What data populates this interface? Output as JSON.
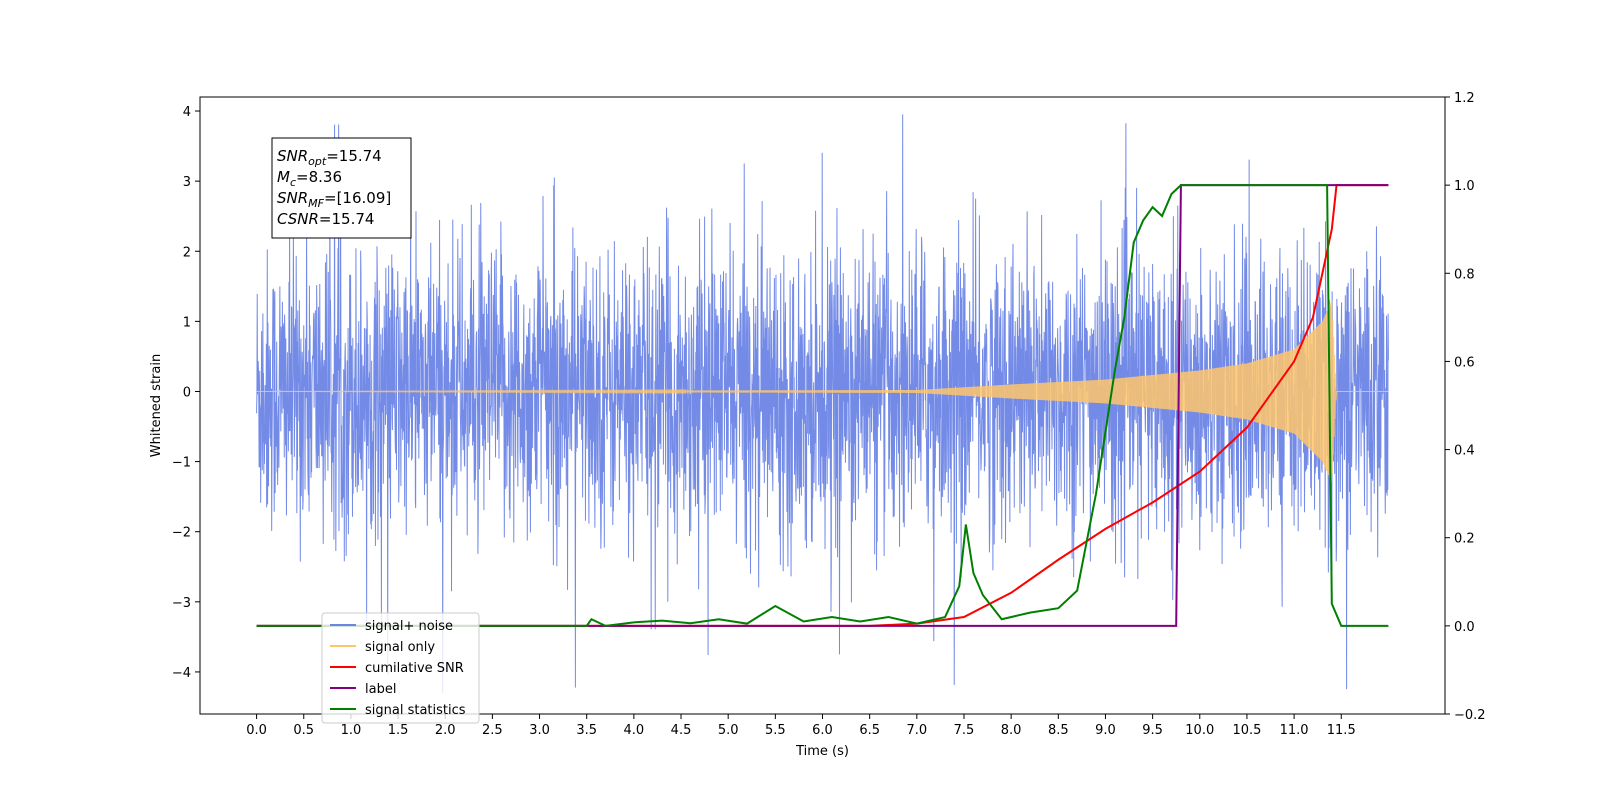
{
  "chart_data": {
    "type": "line",
    "title": "",
    "xlabel": "Time (s)",
    "ylabel": "Whitened strain",
    "y2label": "",
    "xlim": [
      -0.6,
      12.6
    ],
    "ylim": [
      -4.6,
      4.2
    ],
    "y2lim": [
      -0.2,
      1.2
    ],
    "xticks": [
      0.0,
      0.5,
      1.0,
      1.5,
      2.0,
      2.5,
      3.0,
      3.5,
      4.0,
      4.5,
      5.0,
      5.5,
      6.0,
      6.5,
      7.0,
      7.5,
      8.0,
      8.5,
      9.0,
      9.5,
      10.0,
      10.5,
      11.0,
      11.5
    ],
    "xtick_labels": [
      "0.0",
      "0.5",
      "1.0",
      "1.5",
      "2.0",
      "2.5",
      "3.0",
      "3.5",
      "4.0",
      "4.5",
      "5.0",
      "5.5",
      "6.0",
      "6.5",
      "7.0",
      "7.5",
      "8.0",
      "8.5",
      "9.0",
      "9.5",
      "10.0",
      "10.5",
      "11.0",
      "11.5"
    ],
    "yticks": [
      -4,
      -3,
      -2,
      -1,
      0,
      1,
      2,
      3,
      4
    ],
    "ytick_labels": [
      "−4",
      "−3",
      "−2",
      "−1",
      "0",
      "1",
      "2",
      "3",
      "4"
    ],
    "y2ticks": [
      -0.2,
      0.0,
      0.2,
      0.4,
      0.6,
      0.8,
      1.0,
      1.2
    ],
    "y2tick_labels": [
      "−0.2",
      "0.0",
      "0.2",
      "0.4",
      "0.6",
      "0.8",
      "1.0",
      "1.2"
    ],
    "legend_position": "lower-left",
    "grid": false,
    "series": [
      {
        "name": "signal+ noise",
        "axis": "left",
        "color": "#6b85e6",
        "description": "whitened noise, amplitude ~ ±2.5, peaks to ±3.8",
        "x_range": [
          0.0,
          12.0
        ],
        "envelope": [
          2.5,
          -2.6
        ]
      },
      {
        "name": "signal only",
        "axis": "left",
        "color": "#ffc56b",
        "x_range": [
          0.0,
          12.0
        ],
        "envelope_points": [
          [
            0.0,
            0.0
          ],
          [
            7.0,
            0.02
          ],
          [
            8.0,
            0.1
          ],
          [
            9.0,
            0.17
          ],
          [
            10.0,
            0.3
          ],
          [
            10.5,
            0.4
          ],
          [
            11.0,
            0.6
          ],
          [
            11.3,
            1.0
          ],
          [
            11.4,
            1.3
          ],
          [
            11.45,
            0.0
          ],
          [
            12.0,
            0.0
          ]
        ]
      },
      {
        "name": "cumilative SNR",
        "axis": "right",
        "color": "#ff0000",
        "x": [
          0.0,
          6.5,
          7.0,
          7.5,
          8.0,
          8.5,
          9.0,
          9.5,
          10.0,
          10.5,
          11.0,
          11.2,
          11.4,
          11.45,
          12.0
        ],
        "y": [
          0.0,
          0.0,
          0.005,
          0.02,
          0.075,
          0.15,
          0.22,
          0.28,
          0.35,
          0.45,
          0.6,
          0.7,
          0.9,
          1.0,
          1.0
        ]
      },
      {
        "name": "label",
        "axis": "right",
        "color": "#800080",
        "x": [
          0.0,
          9.75,
          9.8,
          11.4,
          11.45,
          12.0
        ],
        "y": [
          0.0,
          0.0,
          1.0,
          1.0,
          1.0,
          1.0
        ]
      },
      {
        "name": "signal statistics",
        "axis": "right",
        "color": "#008000",
        "x": [
          0.0,
          3.5,
          3.55,
          3.7,
          4.0,
          4.3,
          4.6,
          4.9,
          5.2,
          5.5,
          5.8,
          6.1,
          6.4,
          6.7,
          7.0,
          7.3,
          7.45,
          7.52,
          7.6,
          7.7,
          7.9,
          8.2,
          8.5,
          8.7,
          8.9,
          9.0,
          9.1,
          9.2,
          9.3,
          9.4,
          9.5,
          9.6,
          9.7,
          9.8,
          10.0,
          11.0,
          11.35,
          11.4,
          11.5,
          12.0
        ],
        "y": [
          0.0,
          0.0,
          0.015,
          0.0,
          0.008,
          0.012,
          0.006,
          0.015,
          0.005,
          0.045,
          0.01,
          0.02,
          0.01,
          0.02,
          0.005,
          0.02,
          0.09,
          0.23,
          0.12,
          0.07,
          0.015,
          0.03,
          0.04,
          0.08,
          0.3,
          0.44,
          0.58,
          0.7,
          0.87,
          0.92,
          0.95,
          0.93,
          0.98,
          1.0,
          1.0,
          1.0,
          1.0,
          0.05,
          0.0,
          0.0
        ]
      }
    ],
    "legend": [
      {
        "label": "signal+ noise",
        "color": "#6b85e6"
      },
      {
        "label": "signal only",
        "color": "#ffc56b"
      },
      {
        "label": "cumilative SNR",
        "color": "#ff0000"
      },
      {
        "label": "label",
        "color": "#800080"
      },
      {
        "label": "signal statistics",
        "color": "#008000"
      }
    ],
    "annotation": [
      {
        "base": "SNR",
        "sub": "opt",
        "value": "=15.74"
      },
      {
        "base": "M",
        "sub": "c",
        "value": "=8.36"
      },
      {
        "base": "SNR",
        "sub": "MF",
        "value": "=[16.09]"
      },
      {
        "base": "CSNR",
        "sub": "",
        "value": "=15.74"
      }
    ]
  }
}
